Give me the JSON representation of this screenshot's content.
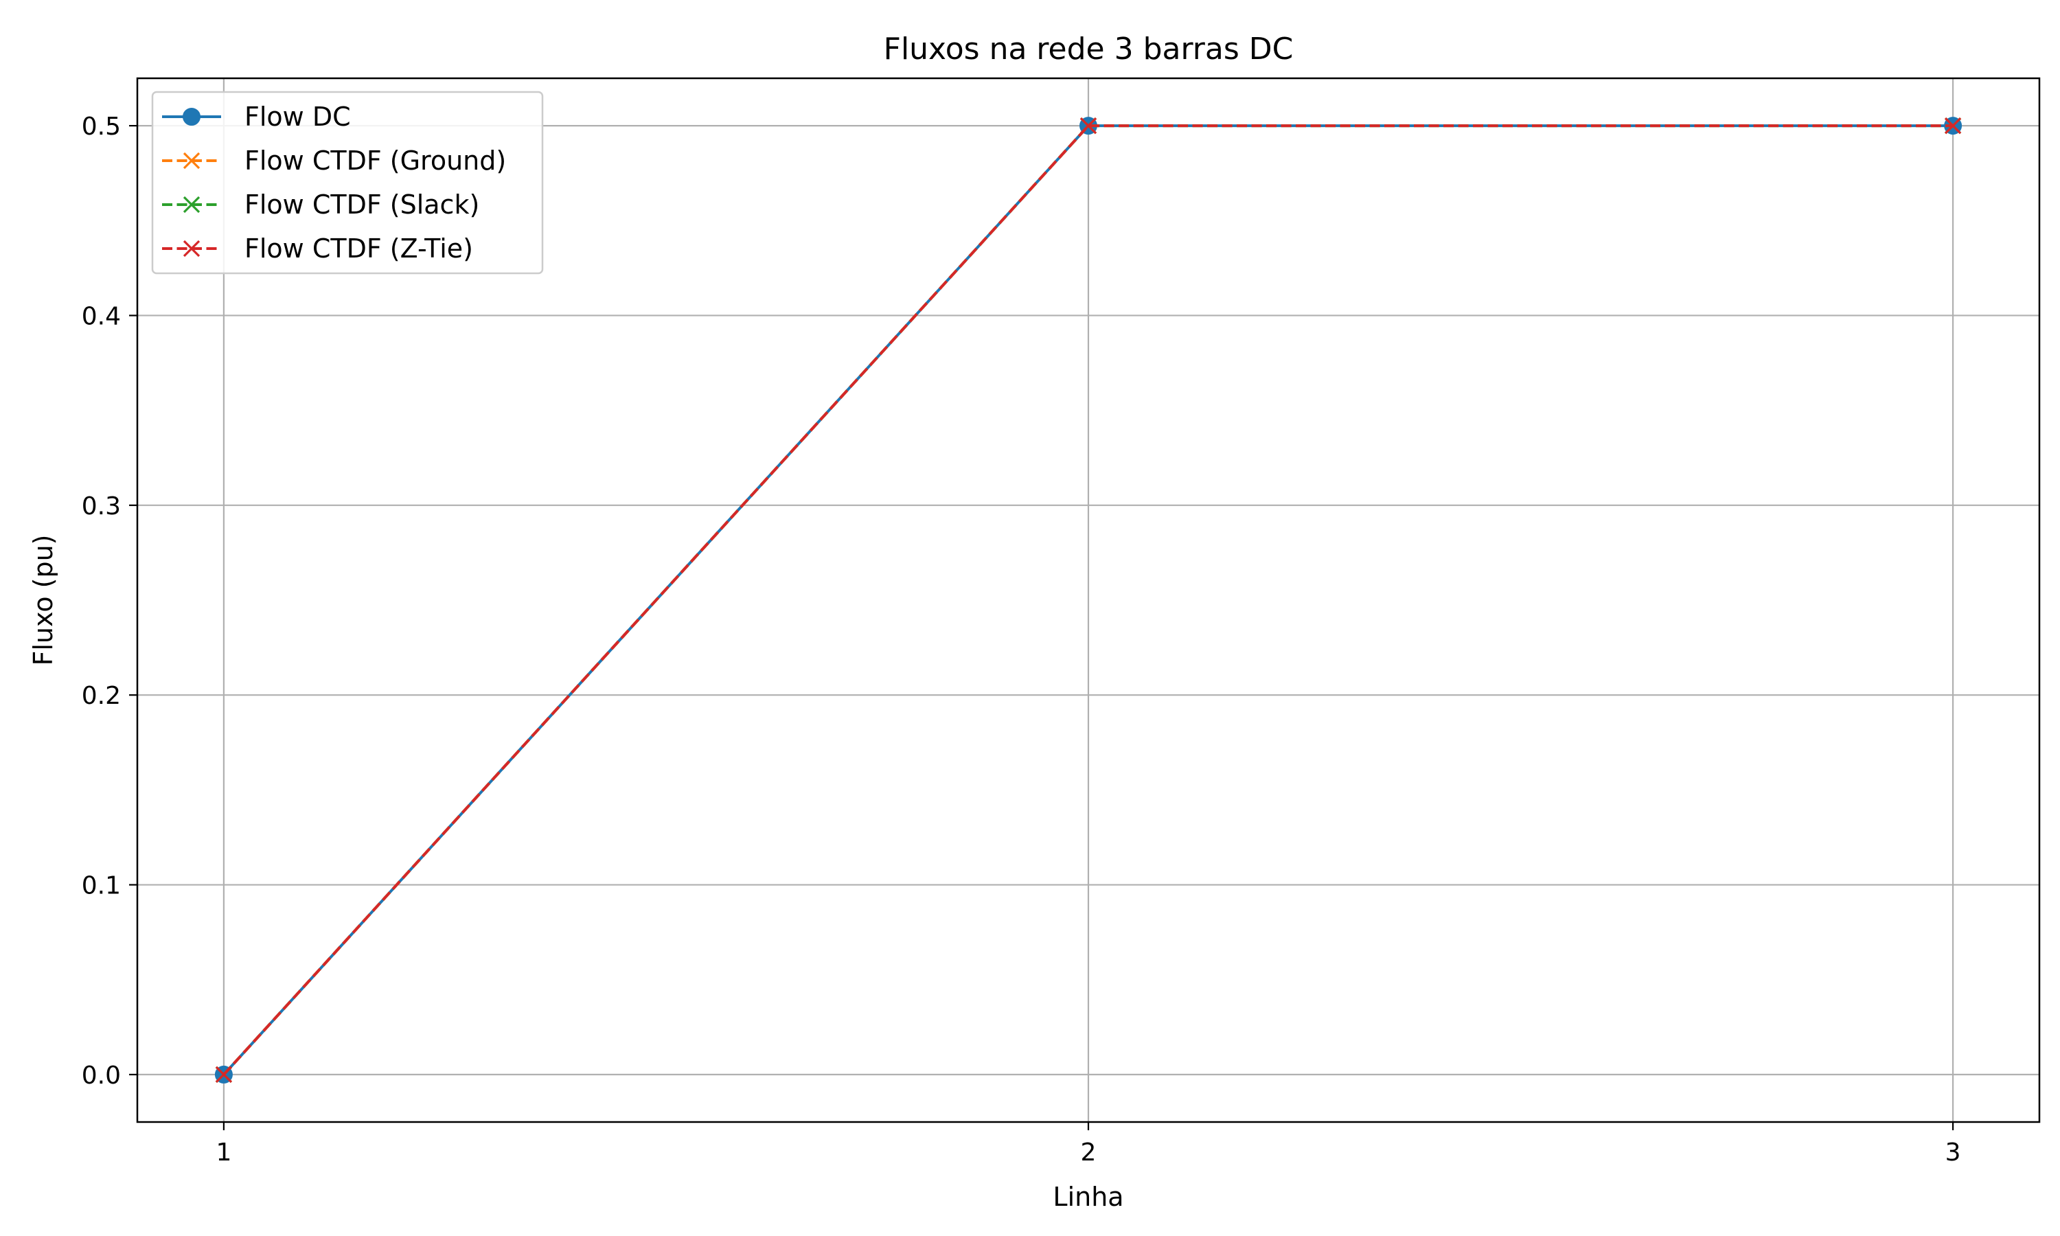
{
  "chart_data": {
    "type": "line",
    "title": "Fluxos na rede 3 barras DC",
    "xlabel": "Linha",
    "ylabel": "Fluxo (pu)",
    "x": [
      1,
      2,
      3
    ],
    "x_ticks": [
      "1",
      "2",
      "3"
    ],
    "xlim": [
      0.9,
      3.1
    ],
    "ylim": [
      -0.025,
      0.525
    ],
    "y_ticks": [
      0.0,
      0.1,
      0.2,
      0.3,
      0.4,
      0.5
    ],
    "y_tick_labels": [
      "0.0",
      "0.1",
      "0.2",
      "0.3",
      "0.4",
      "0.5"
    ],
    "grid": true,
    "legend_position": "upper-left",
    "series": [
      {
        "name": "Flow DC",
        "values": [
          0.0,
          0.5,
          0.5
        ],
        "color": "#1f77b4",
        "linestyle": "solid",
        "marker": "circle"
      },
      {
        "name": "Flow CTDF (Ground)",
        "values": [
          0.0,
          0.5,
          0.5
        ],
        "color": "#ff7f0e",
        "linestyle": "dashed",
        "marker": "x"
      },
      {
        "name": "Flow CTDF (Slack)",
        "values": [
          0.0,
          0.5,
          0.5
        ],
        "color": "#2ca02c",
        "linestyle": "dashed",
        "marker": "x"
      },
      {
        "name": "Flow CTDF (Z-Tie)",
        "values": [
          0.0,
          0.5,
          0.5
        ],
        "color": "#d62728",
        "linestyle": "dashed",
        "marker": "x"
      }
    ]
  }
}
